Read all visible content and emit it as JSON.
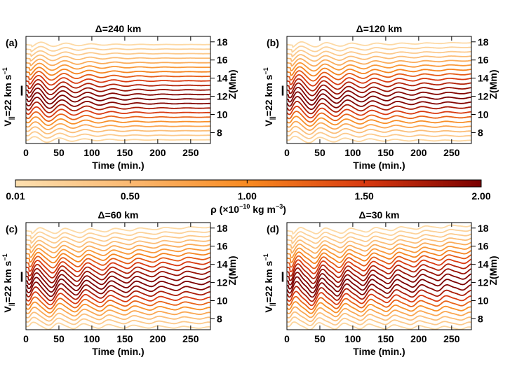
{
  "colorbar": {
    "label": "ρ (×10",
    "label_exp": "−10",
    "label_units": " kg m",
    "label_units_exp": "−3",
    "label_close": ")",
    "ticks": [
      "0.01",
      "0.50",
      "1.00",
      "1.50",
      "2.00"
    ],
    "tick_values": [
      0.01,
      0.5,
      1.0,
      1.5,
      2.0
    ],
    "range": [
      0.01,
      2.0
    ],
    "colors": [
      "#fde0b0",
      "#fbb870",
      "#f88a20",
      "#d83a10",
      "#7a0000"
    ]
  },
  "scale_label": {
    "main": "V",
    "sub": "||",
    "rest": "=22 km s",
    "exp": "−1"
  },
  "chart_data": [
    {
      "type": "line",
      "panel": "(a)",
      "title": "Δ=240 km",
      "xlabel": "Time (min.)",
      "ylabel_right": "Z(Mm)",
      "xlim": [
        0,
        280
      ],
      "ylim": [
        6.8,
        18.6
      ],
      "xticks": [
        0,
        50,
        100,
        150,
        200,
        250
      ],
      "yticks": [
        8,
        10,
        12,
        14,
        16,
        18
      ],
      "period_min": 38,
      "damping_tau_min": 70,
      "merge_strength": 0.0,
      "series_heights_Mm": [
        7.2,
        7.7,
        8.2,
        8.7,
        9.2,
        9.7,
        10.2,
        10.7,
        11.2,
        11.7,
        12.2,
        12.7,
        13.2,
        13.7,
        14.2,
        14.7,
        15.2,
        15.7,
        16.2,
        16.7,
        17.2,
        17.7
      ],
      "series_density": [
        0.15,
        0.3,
        0.45,
        0.7,
        0.95,
        1.25,
        1.5,
        1.75,
        1.95,
        2.0,
        1.95,
        1.85,
        1.7,
        1.5,
        1.3,
        1.05,
        0.85,
        0.65,
        0.45,
        0.3,
        0.2,
        0.1
      ]
    },
    {
      "type": "line",
      "panel": "(b)",
      "title": "Δ=120 km",
      "xlabel": "Time (min.)",
      "ylabel_right": "Z(Mm)",
      "xlim": [
        0,
        280
      ],
      "ylim": [
        6.8,
        18.6
      ],
      "xticks": [
        0,
        50,
        100,
        150,
        200,
        250
      ],
      "yticks": [
        8,
        10,
        12,
        14,
        16,
        18
      ],
      "period_min": 38,
      "damping_tau_min": 110,
      "merge_strength": 0.35,
      "series_heights_Mm": [
        7.2,
        7.7,
        8.2,
        8.7,
        9.2,
        9.7,
        10.2,
        10.7,
        11.2,
        11.7,
        12.2,
        12.7,
        13.2,
        13.7,
        14.2,
        14.7,
        15.2,
        15.7,
        16.2,
        16.7,
        17.2,
        17.7
      ],
      "series_density": [
        0.15,
        0.3,
        0.45,
        0.7,
        0.95,
        1.25,
        1.5,
        1.75,
        1.95,
        2.0,
        1.95,
        1.85,
        1.7,
        1.5,
        1.3,
        1.05,
        0.85,
        0.65,
        0.45,
        0.3,
        0.2,
        0.1
      ]
    },
    {
      "type": "line",
      "panel": "(c)",
      "title": "Δ=60 km",
      "xlabel": "Time (min.)",
      "ylabel_right": "Z(Mm)",
      "xlim": [
        0,
        280
      ],
      "ylim": [
        6.8,
        18.6
      ],
      "xticks": [
        0,
        50,
        100,
        150,
        200,
        250
      ],
      "yticks": [
        8,
        10,
        12,
        14,
        16,
        18
      ],
      "period_min": 38,
      "damping_tau_min": 160,
      "merge_strength": 0.7,
      "series_heights_Mm": [
        7.2,
        7.7,
        8.2,
        8.7,
        9.2,
        9.7,
        10.2,
        10.7,
        11.2,
        11.7,
        12.2,
        12.7,
        13.2,
        13.7,
        14.2,
        14.7,
        15.2,
        15.7,
        16.2,
        16.7,
        17.2,
        17.7
      ],
      "series_density": [
        0.15,
        0.3,
        0.45,
        0.7,
        0.95,
        1.25,
        1.5,
        1.75,
        1.95,
        2.0,
        1.95,
        1.85,
        1.7,
        1.5,
        1.3,
        1.05,
        0.85,
        0.65,
        0.45,
        0.3,
        0.2,
        0.1
      ]
    },
    {
      "type": "line",
      "panel": "(d)",
      "title": "Δ=30 km",
      "xlabel": "Time (min.)",
      "ylabel_right": "Z(Mm)",
      "xlim": [
        0,
        280
      ],
      "ylim": [
        6.8,
        18.6
      ],
      "xticks": [
        0,
        50,
        100,
        150,
        200,
        250
      ],
      "yticks": [
        8,
        10,
        12,
        14,
        16,
        18
      ],
      "period_min": 38,
      "damping_tau_min": 220,
      "merge_strength": 1.0,
      "series_heights_Mm": [
        7.2,
        7.7,
        8.2,
        8.7,
        9.2,
        9.7,
        10.2,
        10.7,
        11.2,
        11.7,
        12.2,
        12.7,
        13.2,
        13.7,
        14.2,
        14.7,
        15.2,
        15.7,
        16.2,
        16.7,
        17.2,
        17.7
      ],
      "series_density": [
        0.15,
        0.3,
        0.45,
        0.7,
        0.95,
        1.25,
        1.5,
        1.75,
        1.95,
        2.0,
        1.95,
        1.85,
        1.7,
        1.5,
        1.3,
        1.05,
        0.85,
        0.65,
        0.45,
        0.3,
        0.2,
        0.1
      ]
    }
  ]
}
